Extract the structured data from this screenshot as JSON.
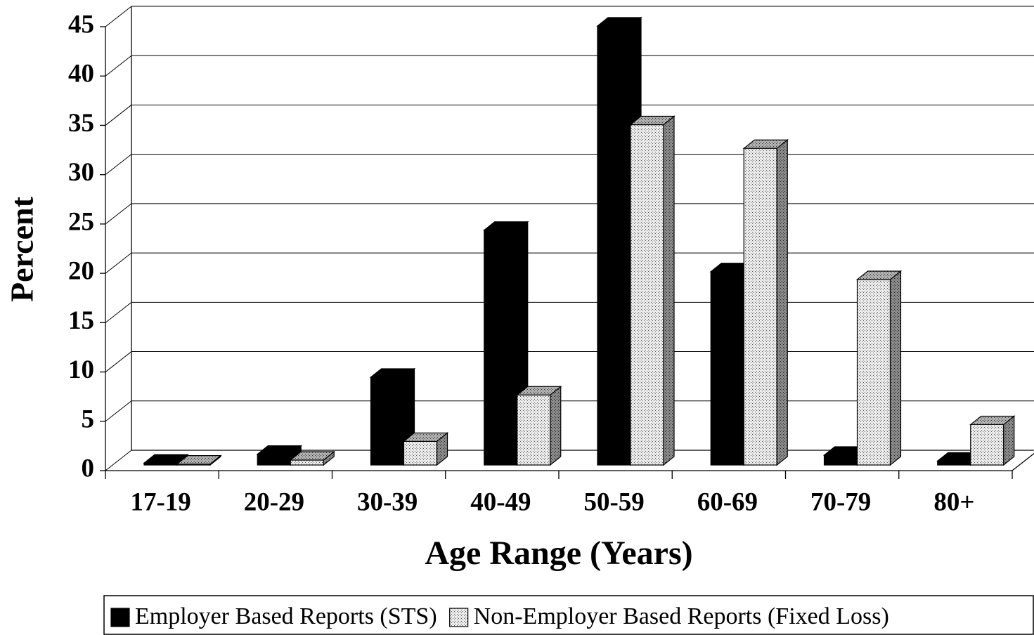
{
  "chart_data": {
    "type": "bar3d",
    "x_label": "Age Range (Years)",
    "y_label": "Percent",
    "categories": [
      "17-19",
      "20-29",
      "30-39",
      "40-49",
      "50-59",
      "60-69",
      "70-79",
      "80+"
    ],
    "series": [
      {
        "name": "Employer Based Reports (STS)",
        "color": "#000000",
        "pattern": "solid",
        "values": [
          0.2,
          1.1,
          8.9,
          23.8,
          44.5,
          19.6,
          1.0,
          0.4
        ]
      },
      {
        "name": "Non-Employer Based Reports (Fixed Loss)",
        "color": "#ececec",
        "pattern": "dots",
        "values": [
          0.1,
          0.5,
          2.4,
          7.1,
          34.5,
          32.1,
          18.8,
          4.1
        ]
      }
    ],
    "ylim": [
      0,
      45
    ],
    "yticks": [
      0,
      5,
      10,
      15,
      20,
      25,
      30,
      35,
      40,
      45
    ],
    "grid": true,
    "legend": "bottom"
  }
}
